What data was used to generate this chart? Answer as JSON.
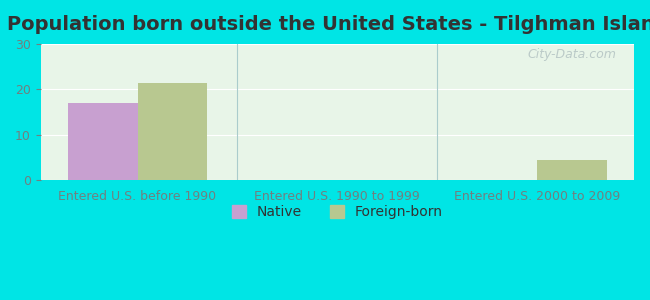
{
  "title": "Population born outside the United States - Tilghman Island",
  "categories": [
    "Entered U.S. before 1990",
    "Entered U.S. 1990 to 1999",
    "Entered U.S. 2000 to 2009"
  ],
  "native_values": [
    17,
    0,
    0
  ],
  "foreign_values": [
    21.5,
    0,
    4.5
  ],
  "native_color": "#c8a0d0",
  "foreign_color": "#b8c890",
  "bg_color": "#00e5e5",
  "plot_bg_color": "#e8f5e8",
  "ylim": [
    0,
    30
  ],
  "yticks": [
    0,
    10,
    20,
    30
  ],
  "bar_width": 0.35,
  "title_fontsize": 14,
  "axis_label_fontsize": 9,
  "legend_fontsize": 10,
  "watermark": "City-Data.com"
}
